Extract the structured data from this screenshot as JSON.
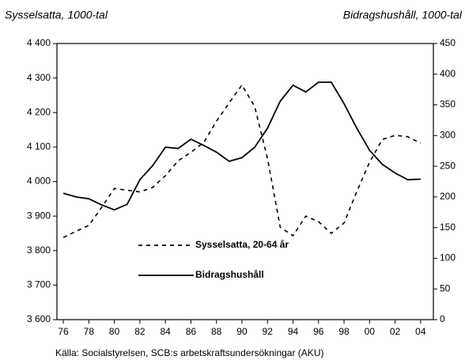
{
  "chart_data": {
    "type": "line",
    "y_label": "Sysselsatta, 1000-tal",
    "y2_label": "Bidragshushåll, 1000-tal",
    "source": "Källa: Socialstyrelsen, SCB:s arbetskraftsundersökningar (AKU)",
    "x": [
      1976,
      1977,
      1978,
      1979,
      1980,
      1981,
      1982,
      1983,
      1984,
      1985,
      1986,
      1987,
      1988,
      1989,
      1990,
      1991,
      1992,
      1993,
      1994,
      1995,
      1996,
      1997,
      1998,
      1999,
      2000,
      2001,
      2002,
      2003,
      2004
    ],
    "series": [
      {
        "name": "Sysselsatta, 20-64 år",
        "color": "#000000",
        "dash": true,
        "values": [
          3838,
          3856,
          3873,
          3925,
          3980,
          3975,
          3970,
          3983,
          4017,
          4060,
          4085,
          4113,
          4175,
          4228,
          4280,
          4217,
          4067,
          3868,
          3843,
          3900,
          3884,
          3850,
          3880,
          3971,
          4056,
          4122,
          4134,
          4130,
          4111
        ]
      },
      {
        "name": "Bidragshushåll",
        "color": "#000000",
        "dash": false,
        "axis": "y2",
        "values": [
          206,
          200,
          197,
          187,
          179,
          188,
          228,
          251,
          281,
          279,
          294,
          284,
          273,
          258,
          264,
          281,
          312,
          356,
          382,
          371,
          387,
          387,
          352,
          312,
          276,
          253,
          239,
          228,
          229
        ]
      }
    ],
    "xlim": [
      1975.5,
      2005
    ],
    "xticks": [
      {
        "value": 1976,
        "label": "76"
      },
      {
        "value": 1978,
        "label": "78"
      },
      {
        "value": 1980,
        "label": "80"
      },
      {
        "value": 1982,
        "label": "82"
      },
      {
        "value": 1984,
        "label": "84"
      },
      {
        "value": 1986,
        "label": "86"
      },
      {
        "value": 1988,
        "label": "88"
      },
      {
        "value": 1990,
        "label": "90"
      },
      {
        "value": 1992,
        "label": "92"
      },
      {
        "value": 1994,
        "label": "94"
      },
      {
        "value": 1996,
        "label": "96"
      },
      {
        "value": 1998,
        "label": "98"
      },
      {
        "value": 2000,
        "label": "00"
      },
      {
        "value": 2002,
        "label": "02"
      },
      {
        "value": 2004,
        "label": "04"
      }
    ],
    "ylim": [
      3600,
      4400
    ],
    "yticks": [
      {
        "value": 3600,
        "label": "3 600"
      },
      {
        "value": 3700,
        "label": "3 700"
      },
      {
        "value": 3800,
        "label": "3 800"
      },
      {
        "value": 3900,
        "label": "3 900"
      },
      {
        "value": 4000,
        "label": "4 000"
      },
      {
        "value": 4100,
        "label": "4 100"
      },
      {
        "value": 4200,
        "label": "4 200"
      },
      {
        "value": 4300,
        "label": "4 300"
      },
      {
        "value": 4400,
        "label": "4 400"
      }
    ],
    "y2lim": [
      0,
      450
    ],
    "y2ticks": [
      0,
      50,
      100,
      150,
      200,
      250,
      300,
      350,
      400,
      450
    ],
    "grid": false
  }
}
